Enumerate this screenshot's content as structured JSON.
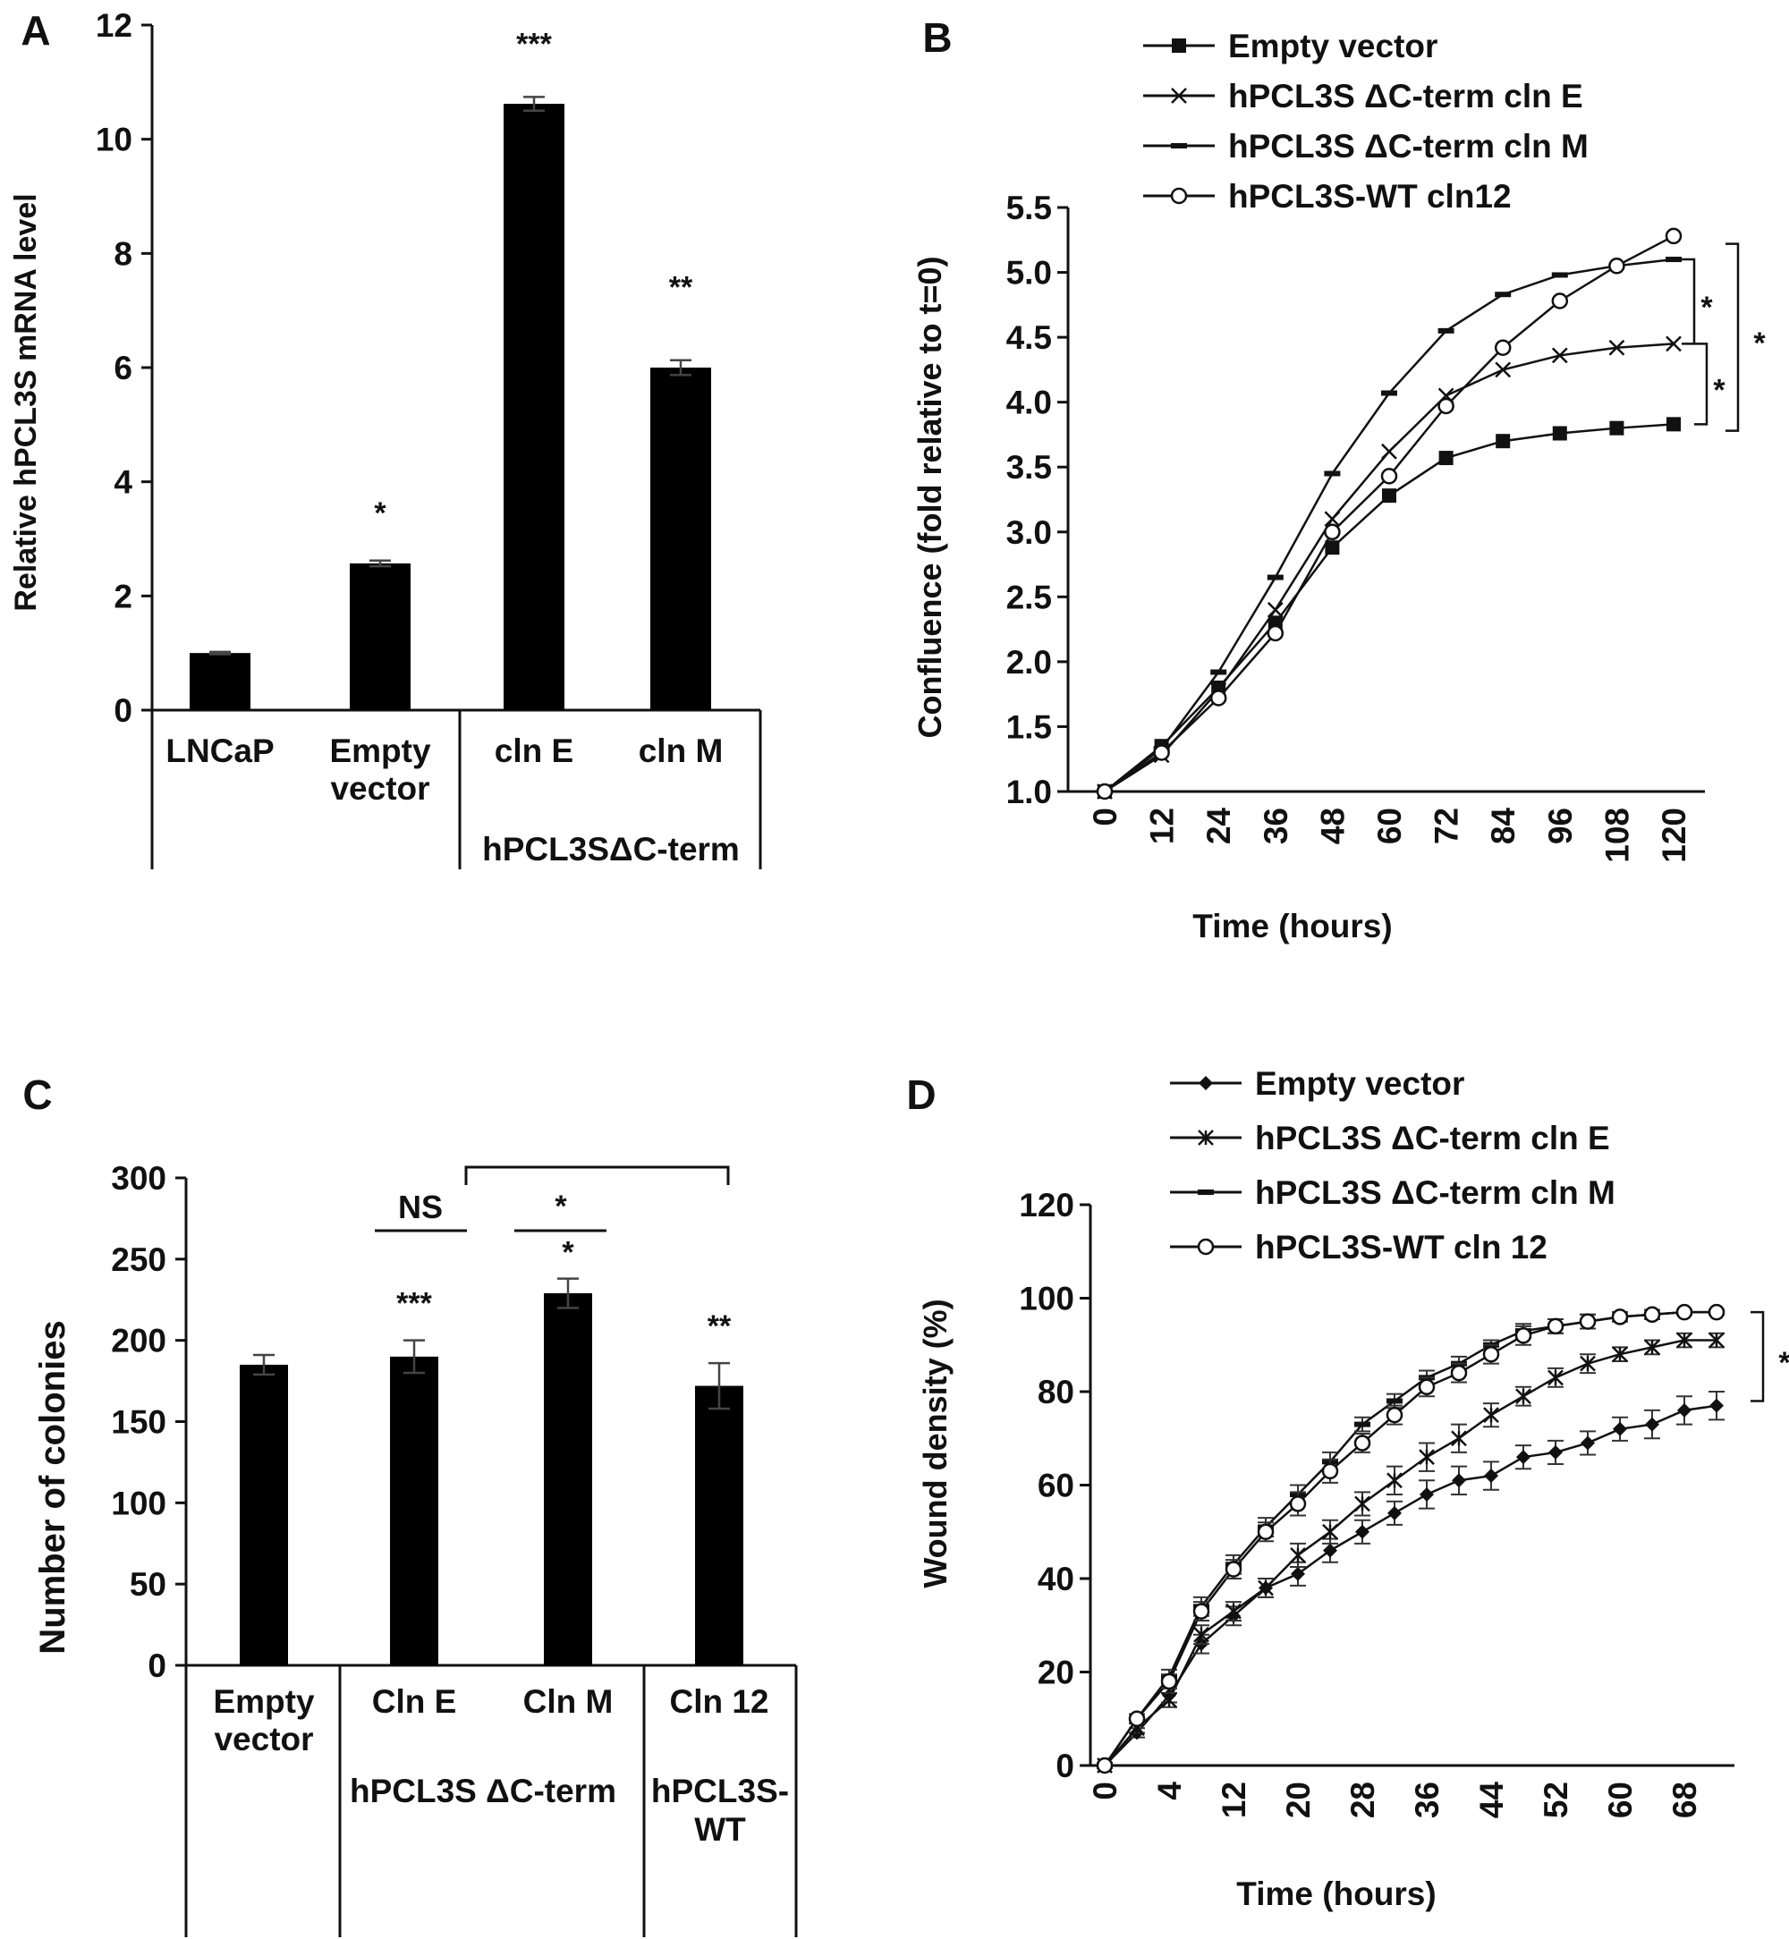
{
  "panel_labels": [
    "A",
    "B",
    "C",
    "D"
  ],
  "chart_data": [
    {
      "type": "bar",
      "panel": "A",
      "categories": [
        "LNCaP",
        "Empty vector",
        "cln E",
        "cln M"
      ],
      "category_lines": [
        [
          "LNCaP"
        ],
        [
          "Empty",
          "vector"
        ],
        [
          "cln E"
        ],
        [
          "cln M"
        ]
      ],
      "values": [
        1.0,
        2.57,
        10.62,
        6.0
      ],
      "errors": [
        0.02,
        0.05,
        0.12,
        0.13
      ],
      "significance": [
        "",
        "*",
        "***",
        "**"
      ],
      "ylabel": "Relative hPCL3S mRNA level",
      "xlabel": "",
      "ylim": [
        0,
        12
      ],
      "yticks": [
        "0",
        "2",
        "4",
        "6",
        "8",
        "10",
        "12"
      ],
      "groups": [
        {
          "label": "hPCL3SΔC-term",
          "categories": [
            "cln E",
            "cln M"
          ]
        }
      ],
      "bar_color": "#000000"
    },
    {
      "type": "line",
      "panel": "B",
      "x": [
        0,
        12,
        24,
        36,
        48,
        60,
        72,
        84,
        96,
        108,
        120
      ],
      "xticks": [
        "0",
        "12",
        "24",
        "36",
        "48",
        "60",
        "72",
        "84",
        "96",
        "108",
        "120"
      ],
      "xlabel": "Time (hours)",
      "ylabel": "Confluence  (fold relative to t=0)",
      "ylim": [
        1.0,
        5.5
      ],
      "yticks": [
        "1.0",
        "1.5",
        "2.0",
        "2.5",
        "3.0",
        "3.5",
        "4.0",
        "4.5",
        "5.0",
        "5.5"
      ],
      "legend_position": "top",
      "series": [
        {
          "name": "Empty vector",
          "marker": "square",
          "values": [
            1.0,
            1.35,
            1.8,
            2.3,
            2.88,
            3.28,
            3.57,
            3.7,
            3.76,
            3.8,
            3.83
          ]
        },
        {
          "name": "hPCL3S ΔC-term cln E",
          "marker": "x",
          "values": [
            1.0,
            1.28,
            1.78,
            2.4,
            3.1,
            3.62,
            4.05,
            4.25,
            4.36,
            4.42,
            4.45
          ]
        },
        {
          "name": "hPCL3S ΔC-term cln M",
          "marker": "dash",
          "values": [
            1.0,
            1.33,
            1.92,
            2.65,
            3.45,
            4.07,
            4.55,
            4.83,
            4.98,
            5.05,
            5.1
          ]
        },
        {
          "name": "hPCL3S-WT cln12",
          "marker": "circle",
          "values": [
            1.0,
            1.3,
            1.72,
            2.22,
            3.0,
            3.43,
            3.97,
            4.42,
            4.78,
            5.05,
            5.28
          ]
        }
      ],
      "significance": [
        {
          "between": [
            "hPCL3S ΔC-term cln M",
            "hPCL3S ΔC-term cln E"
          ],
          "label": "*"
        },
        {
          "between": [
            "hPCL3S ΔC-term cln E",
            "Empty vector"
          ],
          "label": "*"
        },
        {
          "between": [
            "hPCL3S-WT cln12",
            "Empty vector"
          ],
          "label": "*"
        }
      ]
    },
    {
      "type": "bar",
      "panel": "C",
      "categories": [
        "Empty vector",
        "Cln E",
        "Cln M",
        "Cln 12"
      ],
      "category_lines": [
        [
          "Empty",
          "vector"
        ],
        [
          "Cln E"
        ],
        [
          "Cln M"
        ],
        [
          "Cln 12"
        ]
      ],
      "values": [
        185,
        190,
        229,
        172
      ],
      "errors": [
        6,
        10,
        9,
        14
      ],
      "significance": [
        "",
        "***",
        "*",
        "**"
      ],
      "ylabel": "Number of colonies",
      "xlabel": "",
      "ylim": [
        0,
        300
      ],
      "yticks": [
        "0",
        "50",
        "100",
        "150",
        "200",
        "250",
        "300"
      ],
      "groups": [
        {
          "label": "hPCL3S  ΔC-term",
          "categories": [
            "Cln E",
            "Cln M"
          ]
        },
        {
          "label_lines": [
            "hPCL3S-",
            "WT"
          ],
          "categories": [
            "Cln 12"
          ]
        }
      ],
      "comparisons": [
        {
          "label": "NS"
        },
        {
          "label": "*"
        },
        {
          "label": ""
        }
      ],
      "bar_color": "#000000"
    },
    {
      "type": "line",
      "panel": "D",
      "x": [
        0,
        2,
        4,
        8,
        12,
        16,
        20,
        24,
        28,
        32,
        36,
        40,
        44,
        48,
        52,
        56,
        60,
        64,
        68,
        72
      ],
      "xticks": [
        "0",
        "4",
        "12",
        "20",
        "28",
        "36",
        "44",
        "52",
        "60",
        "68"
      ],
      "xlabel": "Time (hours)",
      "ylabel": "Wound density (%)",
      "ylim": [
        0,
        120
      ],
      "yticks": [
        "0",
        "20",
        "40",
        "60",
        "80",
        "100",
        "120"
      ],
      "legend_position": "top",
      "series": [
        {
          "name": "Empty vector",
          "marker": "diamond",
          "values": [
            0,
            7,
            15,
            26,
            32,
            38,
            41,
            46,
            50,
            54,
            58,
            61,
            62,
            66,
            67,
            69,
            72,
            73,
            76,
            77
          ],
          "errors": [
            0.5,
            1,
            1.5,
            2,
            2,
            2,
            2.5,
            2.5,
            2.5,
            2.5,
            3,
            3,
            3,
            2.5,
            2.5,
            2.5,
            2.5,
            3,
            3,
            3
          ]
        },
        {
          "name": "hPCL3S ΔC-term cln E",
          "marker": "asterisk",
          "values": [
            0,
            8,
            14,
            28,
            33,
            38,
            45,
            50,
            56,
            61,
            66,
            70,
            75,
            79,
            83,
            86,
            88,
            89.5,
            91,
            91
          ],
          "errors": [
            0.5,
            1,
            1.5,
            2,
            2,
            2,
            2.5,
            2.5,
            2.5,
            3,
            3,
            3,
            2.5,
            2,
            2,
            2,
            1.5,
            1.5,
            1.5,
            1.5
          ]
        },
        {
          "name": "hPCL3S ΔC-term cln M",
          "marker": "dash",
          "values": [
            0,
            10,
            19,
            34,
            43,
            51,
            58,
            65,
            73,
            78,
            83,
            86,
            90,
            93,
            94,
            95,
            96,
            96.5,
            97,
            97
          ],
          "errors": [
            0.5,
            1,
            1.5,
            2,
            2,
            2,
            2,
            2,
            1.5,
            1.5,
            1.5,
            1.5,
            1,
            1.5,
            1.5,
            1.5,
            1,
            1,
            0.5,
            0.5
          ]
        },
        {
          "name": "hPCL3S-WT cln 12",
          "marker": "circle",
          "values": [
            0,
            10,
            18,
            33,
            42,
            50,
            56,
            63,
            69,
            75,
            81,
            84,
            88,
            92,
            94,
            95,
            96,
            96.5,
            97,
            97
          ],
          "errors": [
            0.5,
            1,
            1.5,
            2,
            2,
            2,
            2.5,
            2.5,
            2,
            2,
            2,
            2,
            2,
            2,
            1.5,
            1.5,
            1,
            1,
            0.5,
            0.5
          ]
        }
      ],
      "significance": [
        {
          "between": [
            "hPCL3S ΔC-term cln M",
            "Empty vector"
          ],
          "label": "*"
        }
      ]
    }
  ]
}
